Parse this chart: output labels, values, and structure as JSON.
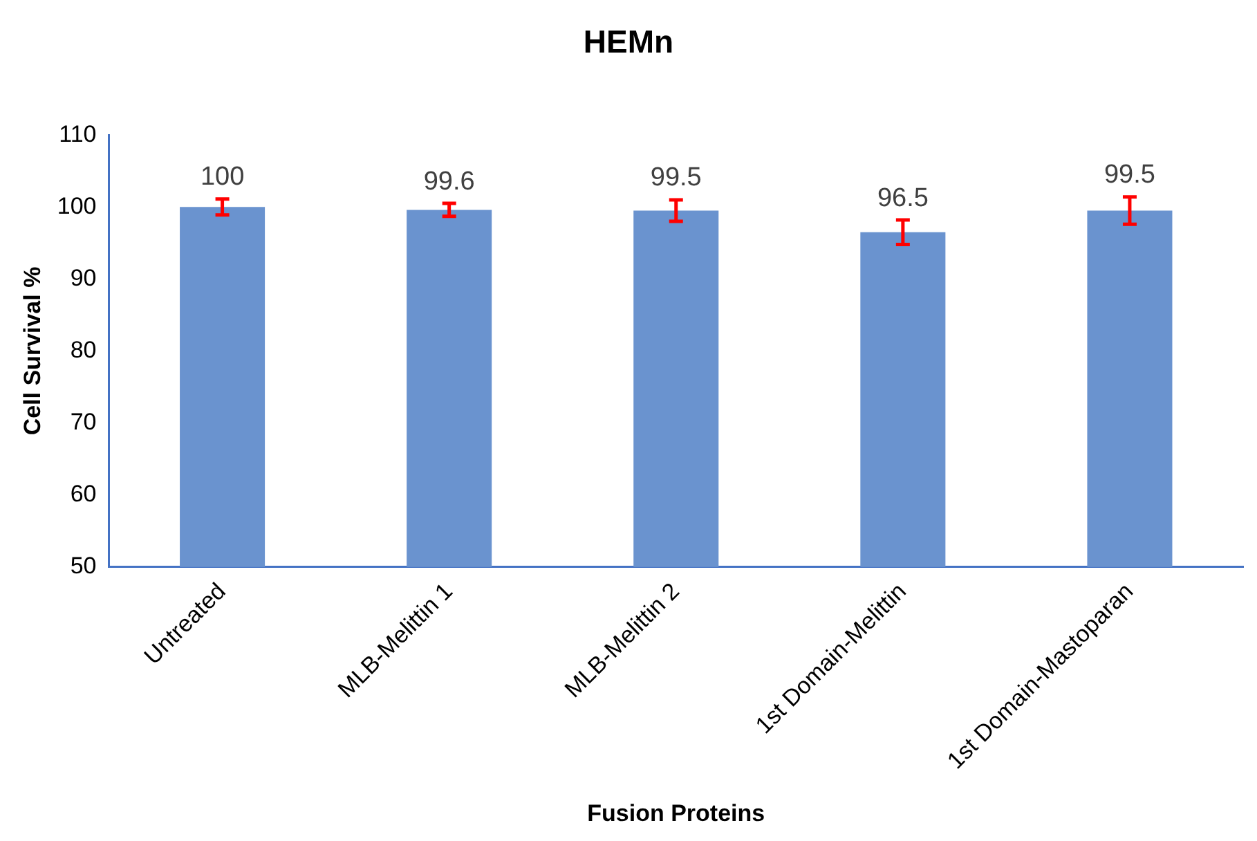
{
  "chart_data": {
    "type": "bar",
    "title": "HEMn",
    "xlabel": "Fusion Proteins",
    "ylabel": "Cell Survival %",
    "categories": [
      "Untreated",
      "MLB-Melittin 1",
      "MLB-Melittin 2",
      "1st Domain-Melittin",
      "1st Domain-Mastoparan"
    ],
    "values": [
      100,
      99.6,
      99.5,
      96.5,
      99.5
    ],
    "errors": [
      1.1,
      0.9,
      1.5,
      1.7,
      1.9
    ],
    "color": "#6a93cf",
    "data_labels": true,
    "ylim": [
      50,
      110
    ],
    "yticks": [
      50,
      60,
      70,
      80,
      90,
      100,
      110
    ],
    "grid": false,
    "legend": false
  }
}
